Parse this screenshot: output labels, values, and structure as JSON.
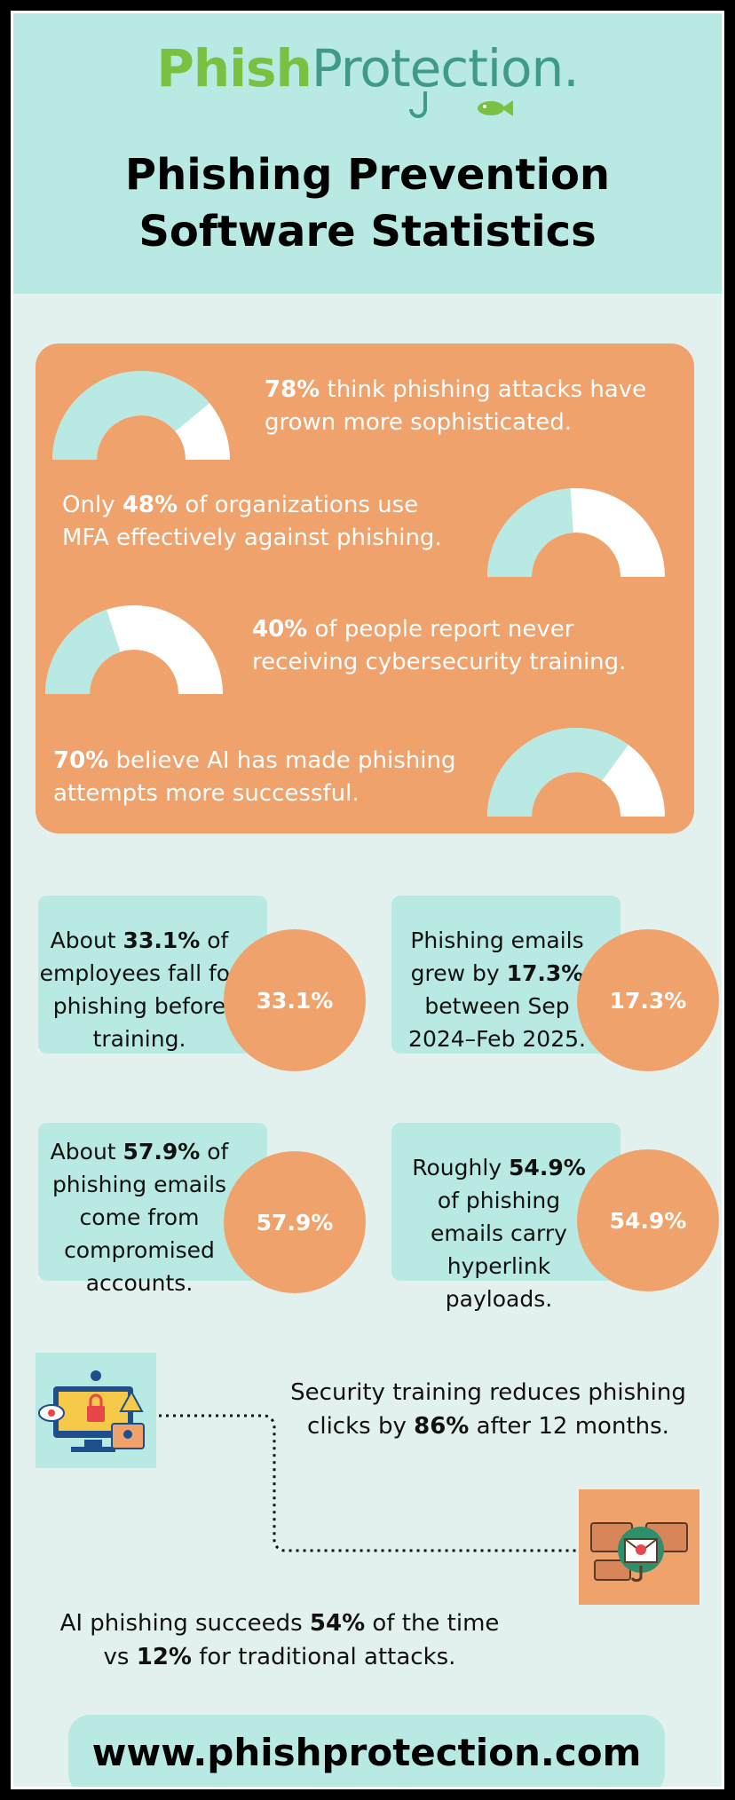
{
  "brand": {
    "part1": "Phish",
    "part2": "Protection."
  },
  "title": {
    "line1": "Phishing Prevention",
    "line2": "Software Statistics"
  },
  "stats": [
    {
      "pct": "78%",
      "text": " think phishing attacks have grown more sophisticated.",
      "value": 78
    },
    {
      "prefix": "Only ",
      "pct": "48%",
      "text": " of organizations use MFA effectively against phishing.",
      "value": 48
    },
    {
      "pct": "40%",
      "text": " of people report never receiving cybersecurity training.",
      "value": 40
    },
    {
      "pct": "70%",
      "text": " believe AI has made phishing attempts more successful.",
      "value": 70
    }
  ],
  "cards": [
    {
      "pre": "About ",
      "bold": "33.1%",
      "post": " of employees fall for phishing before training.",
      "bubble": "33.1%"
    },
    {
      "pre": "Phishing emails grew by ",
      "bold": "17.3%",
      "post": " between Sep 2024–Feb 2025.",
      "bubble": "17.3%"
    },
    {
      "pre": "About ",
      "bold": "57.9%",
      "post": " of phishing emails come from compromised accounts.",
      "bubble": "57.9%"
    },
    {
      "pre": "Roughly ",
      "bold": "54.9%",
      "post": " of phishing emails carry hyperlink payloads.",
      "bubble": "54.9%"
    }
  ],
  "flow": [
    {
      "pre": "Security training reduces phishing clicks by ",
      "bold": "86%",
      "post": " after 12 months."
    },
    {
      "pre": "AI phishing succeeds ",
      "bold": "54%",
      "mid": " of the time vs ",
      "bold2": "12%",
      "post": " for traditional attacks."
    }
  ],
  "footer": "www.phishprotection.com",
  "colors": {
    "orange": "#f0a26d",
    "mint": "#b8e9e3",
    "green": "#7ac143",
    "teal": "#3f9a8a"
  }
}
